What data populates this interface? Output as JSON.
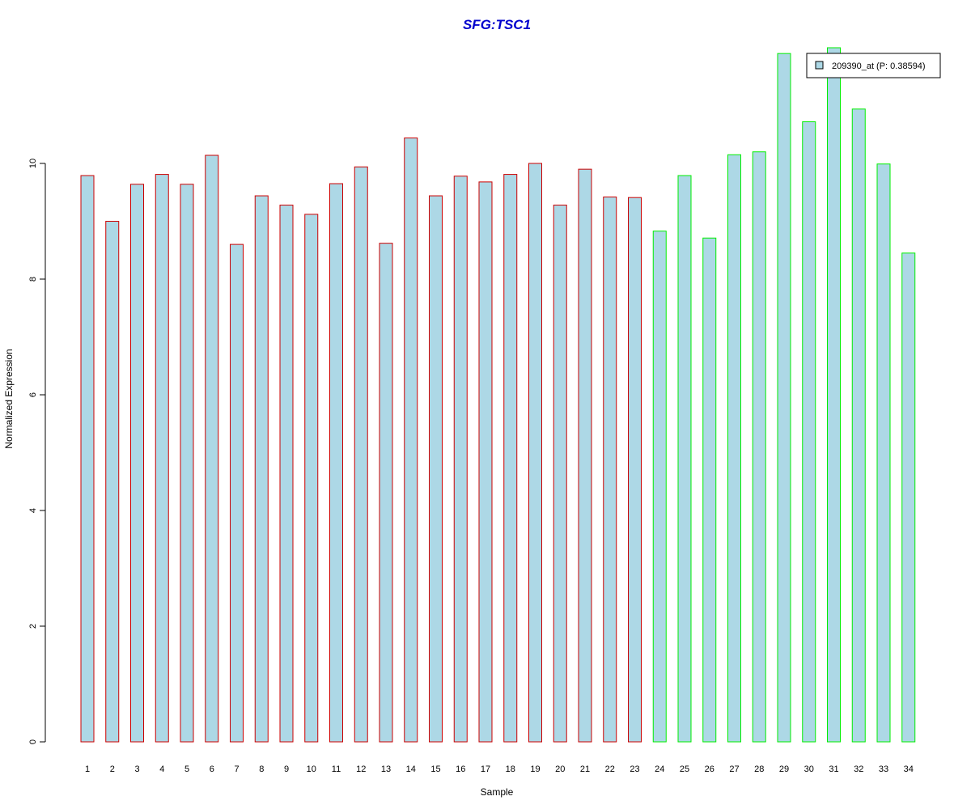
{
  "chart_data": {
    "type": "bar",
    "title": "SFG:TSC1",
    "xlabel": "Sample",
    "ylabel": "Normalized Expression",
    "ylim": [
      0,
      12
    ],
    "yticks": [
      0,
      2,
      4,
      6,
      8,
      10
    ],
    "categories": [
      "1",
      "2",
      "3",
      "4",
      "5",
      "6",
      "7",
      "8",
      "9",
      "10",
      "11",
      "12",
      "13",
      "14",
      "15",
      "16",
      "17",
      "18",
      "19",
      "20",
      "21",
      "22",
      "23",
      "24",
      "25",
      "26",
      "27",
      "28",
      "29",
      "30",
      "31",
      "32",
      "33",
      "34"
    ],
    "series": [
      {
        "name": "209390_at (P: 0.38594)",
        "values": [
          9.79,
          9.0,
          9.64,
          9.81,
          9.64,
          10.14,
          8.6,
          9.44,
          9.28,
          9.12,
          9.65,
          9.94,
          8.62,
          10.44,
          9.44,
          9.78,
          9.68,
          9.81,
          10.0,
          9.28,
          9.9,
          9.42,
          9.41,
          8.83,
          9.79,
          8.71,
          10.15,
          10.2,
          11.9,
          10.72,
          12.0,
          10.94,
          9.99,
          8.45
        ]
      }
    ],
    "group_of_bar": [
      "a",
      "a",
      "a",
      "a",
      "a",
      "a",
      "a",
      "a",
      "a",
      "a",
      "a",
      "a",
      "a",
      "a",
      "a",
      "a",
      "a",
      "a",
      "a",
      "a",
      "a",
      "a",
      "a",
      "b",
      "b",
      "b",
      "b",
      "b",
      "b",
      "b",
      "b",
      "b",
      "b",
      "b"
    ],
    "colors": {
      "fill": "#add8e6",
      "group_a_border": "#cc0000",
      "group_b_border": "#00ee00",
      "title": "#0000cd"
    },
    "legend": {
      "placement": "top-right",
      "label": "209390_at (P: 0.38594)"
    },
    "grid": false
  }
}
